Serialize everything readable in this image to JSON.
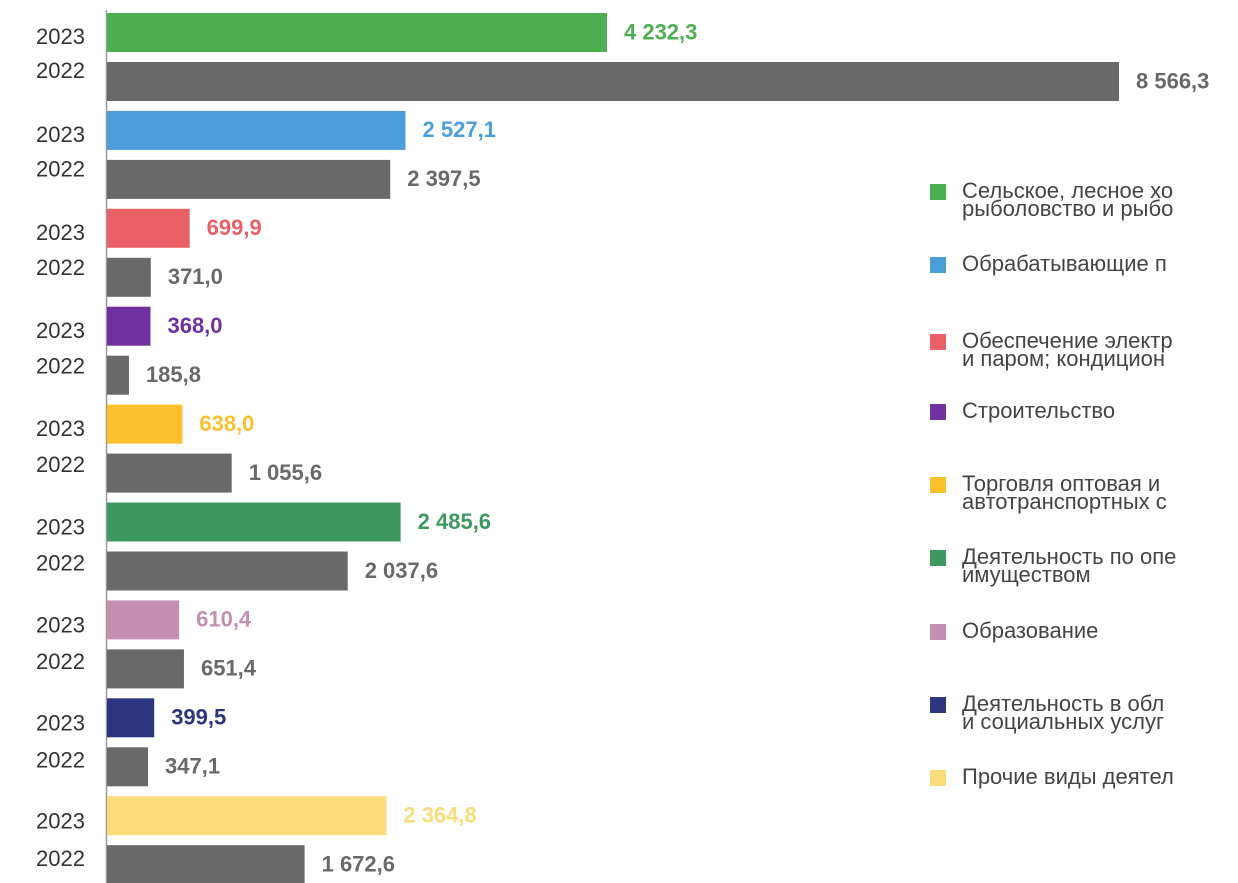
{
  "chart_data": {
    "type": "bar",
    "categories": [
      [
        "Сельское, лесное хо",
        "рыболовство и рыбо"
      ],
      [
        "Обрабатывающие п"
      ],
      [
        "Обеспечение электр",
        "и паром; кондицион"
      ],
      [
        "Строительство"
      ],
      [
        "Торговля оптовая и",
        "автотранспортных с"
      ],
      [
        "Деятельность по опе",
        "имуществом"
      ],
      [
        "Образование"
      ],
      [
        "Деятельность в обл",
        "и социальных услуг"
      ],
      [
        "Прочие виды деятел"
      ]
    ],
    "series": [
      {
        "name": "2023",
        "colors": [
          "#4caf50",
          "#4a9fd8",
          "#eb6066",
          "#7030a0",
          "#fbc12d",
          "#3d9960",
          "#c58fb2",
          "#2b3580",
          "#fcdc7a"
        ],
        "values": [
          4232.3,
          2527.1,
          699.9,
          368.0,
          638.0,
          2485.6,
          610.4,
          399.5,
          2364.8
        ],
        "value_labels": [
          "4 232,3",
          "2 527,1",
          "699,9",
          "368,0",
          "638,0",
          "2 485,6",
          "610,4",
          "399,5",
          "2 364,8"
        ]
      },
      {
        "name": "2022",
        "color": "#696969",
        "values": [
          8566.3,
          2397.5,
          371.0,
          185.8,
          1055.6,
          2037.6,
          651.4,
          347.1,
          1672.6
        ],
        "value_labels": [
          "8 566,3",
          "2 397,5",
          "371,0",
          "185,8",
          "1 055,6",
          "2 037,6",
          "651,4",
          "347,1",
          "1 672,6"
        ]
      }
    ],
    "xlim": [
      0,
      8566.3
    ]
  }
}
